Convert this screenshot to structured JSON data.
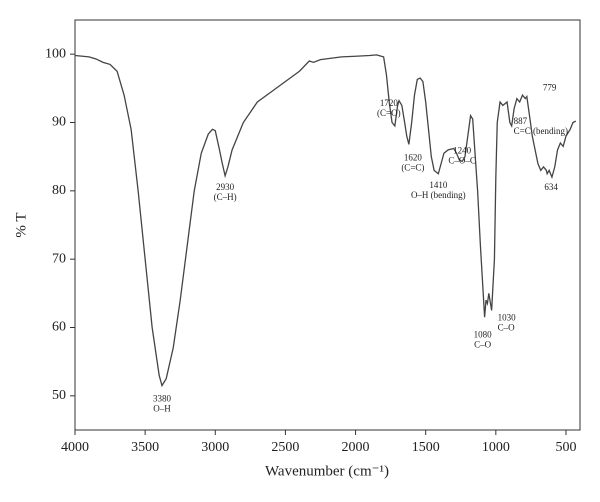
{
  "chart_data": {
    "type": "line",
    "xlabel": "Wavenumber (cm⁻¹)",
    "ylabel": "% T",
    "xlim": [
      4000,
      400
    ],
    "ylim": [
      45,
      105
    ],
    "xticks": [
      4000,
      3500,
      3000,
      2500,
      2000,
      1500,
      1000,
      500
    ],
    "yticks": [
      50,
      60,
      70,
      80,
      90,
      100
    ],
    "color": "#444444",
    "x": [
      4000,
      3900,
      3850,
      3800,
      3750,
      3700,
      3650,
      3600,
      3550,
      3500,
      3450,
      3400,
      3380,
      3350,
      3300,
      3250,
      3200,
      3150,
      3100,
      3050,
      3020,
      3000,
      2970,
      2950,
      2930,
      2910,
      2880,
      2850,
      2800,
      2700,
      2600,
      2500,
      2400,
      2330,
      2300,
      2250,
      2100,
      2000,
      1900,
      1850,
      1800,
      1780,
      1760,
      1740,
      1720,
      1700,
      1690,
      1670,
      1650,
      1635,
      1620,
      1600,
      1580,
      1560,
      1540,
      1520,
      1500,
      1480,
      1460,
      1440,
      1410,
      1390,
      1370,
      1340,
      1300,
      1280,
      1260,
      1240,
      1220,
      1200,
      1180,
      1165,
      1150,
      1130,
      1110,
      1090,
      1080,
      1070,
      1060,
      1050,
      1030,
      1010,
      1000,
      990,
      970,
      950,
      920,
      900,
      887,
      870,
      850,
      830,
      810,
      790,
      779,
      760,
      740,
      720,
      700,
      680,
      660,
      640,
      634,
      620,
      600,
      580,
      560,
      540,
      520,
      500,
      470,
      450,
      430
    ],
    "values": [
      99.8,
      99.6,
      99.3,
      98.8,
      98.5,
      97.5,
      94,
      89,
      80,
      70,
      60,
      53,
      51.5,
      52.5,
      57,
      64,
      72,
      80,
      85.5,
      88.3,
      89,
      88.8,
      86,
      84,
      82.2,
      83.5,
      86,
      87.5,
      90,
      93,
      94.5,
      96,
      97.5,
      99,
      98.8,
      99.2,
      99.6,
      99.7,
      99.8,
      99.9,
      99.6,
      97,
      93,
      90,
      89.5,
      92.5,
      93.2,
      92.5,
      90,
      88,
      86.8,
      90,
      94,
      96.3,
      96.5,
      96,
      93,
      89,
      85,
      83,
      82.5,
      84,
      85.5,
      86,
      86.2,
      85.5,
      84.5,
      84.3,
      85,
      88,
      91,
      90.5,
      86,
      80,
      72,
      65,
      61.5,
      64,
      63.5,
      65,
      62.5,
      70,
      82,
      90,
      93,
      92.5,
      93,
      90,
      89.5,
      92,
      93.5,
      93,
      94,
      93.5,
      93.8,
      91,
      88,
      86,
      84,
      83,
      83.5,
      83,
      82.5,
      83,
      82,
      83.5,
      86,
      87,
      86.5,
      88,
      89,
      90,
      90.2
    ],
    "annotations": [
      {
        "lines": [
          "3380",
          "O–H"
        ],
        "x": 3380,
        "y": 51.5
      },
      {
        "lines": [
          "2930",
          "(C–H)"
        ],
        "x": 2930,
        "y": 82.2
      },
      {
        "lines": [
          "1720",
          "(C=O)"
        ],
        "x": 1720,
        "y": 89.5
      },
      {
        "lines": [
          "1620",
          "(C=C)"
        ],
        "x": 1620,
        "y": 86.8
      },
      {
        "lines": [
          "1410",
          "O–H (bending)"
        ],
        "x": 1410,
        "y": 82.5
      },
      {
        "lines": [
          "1240",
          "C–O–C"
        ],
        "x": 1240,
        "y": 84.3
      },
      {
        "lines": [
          "1080",
          "C–O"
        ],
        "x": 1080,
        "y": 61.5
      },
      {
        "lines": [
          "1030",
          "C–O"
        ],
        "x": 1030,
        "y": 62.5
      },
      {
        "lines": [
          "887",
          "C=C (bending)"
        ],
        "x": 887,
        "y": 89.5
      },
      {
        "lines": [
          "779"
        ],
        "x": 779,
        "y": 93.8
      },
      {
        "lines": [
          "634"
        ],
        "x": 634,
        "y": 82.5
      }
    ]
  }
}
